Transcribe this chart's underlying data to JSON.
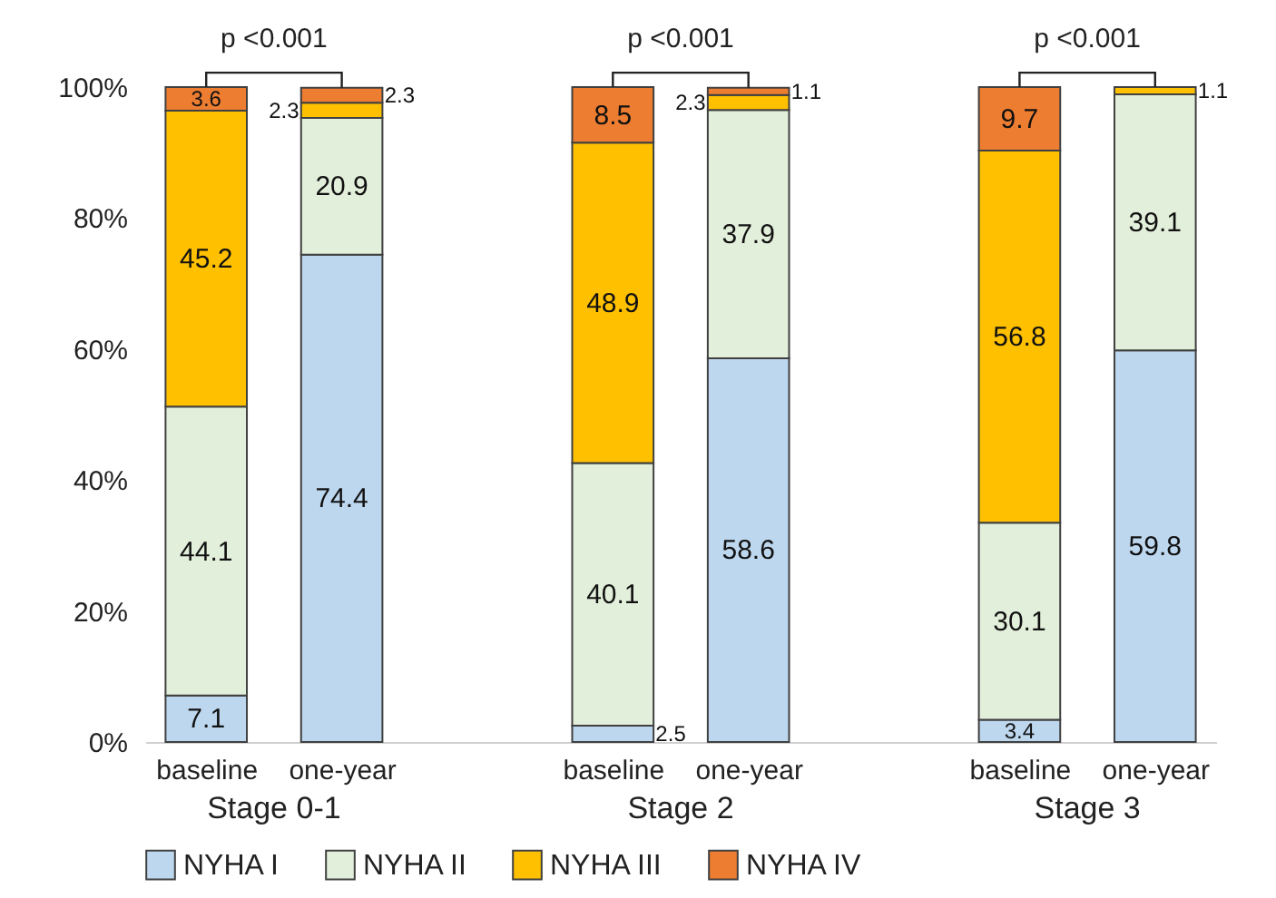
{
  "chart_data": {
    "type": "bar",
    "stacked": true,
    "categories": [
      "baseline",
      "one-year",
      "baseline",
      "one-year",
      "baseline",
      "one-year"
    ],
    "series": [
      {
        "name": "NYHA I",
        "color": "#bdd7ee",
        "values": [
          7.1,
          74.4,
          2.5,
          58.6,
          3.4,
          59.8
        ]
      },
      {
        "name": "NYHA II",
        "color": "#e2efda",
        "values": [
          44.1,
          20.9,
          40.1,
          37.9,
          30.1,
          39.1
        ]
      },
      {
        "name": "NYHA III",
        "color": "#ffc000",
        "values": [
          45.2,
          2.3,
          48.9,
          2.3,
          56.8,
          1.1
        ]
      },
      {
        "name": "NYHA IV",
        "color": "#ed7d31",
        "values": [
          3.6,
          2.3,
          8.5,
          1.1,
          9.7,
          null
        ]
      }
    ],
    "ylim": [
      0,
      100
    ],
    "yticks": [
      {
        "value": 0,
        "label": "0%"
      },
      {
        "value": 20,
        "label": "20%"
      },
      {
        "value": 40,
        "label": "40%"
      },
      {
        "value": 60,
        "label": "60%"
      },
      {
        "value": 80,
        "label": "80%"
      },
      {
        "value": 100,
        "label": "100%"
      }
    ],
    "data_labels": true,
    "legend": "bottom",
    "annotations": [
      "p <0.001",
      "p <0.001",
      "p <0.001",
      "Stage 0-1",
      "Stage 2",
      "Stage 3"
    ]
  }
}
